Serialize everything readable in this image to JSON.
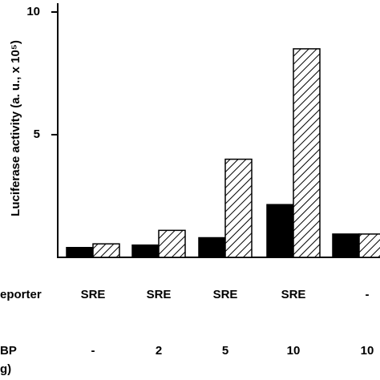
{
  "chart_data": {
    "type": "bar",
    "y_label": "Luciferase activity (a. u., x 10⁵)",
    "categories": [
      null,
      null,
      null,
      null,
      null
    ],
    "series": [
      {
        "color": "#000000",
        "pattern": "solid",
        "values": [
          0.4,
          0.5,
          0.8,
          2.15,
          0.95
        ]
      },
      {
        "color": "#000000",
        "pattern": "hatch",
        "values": [
          0.55,
          1.1,
          4.0,
          8.5,
          0.95
        ]
      }
    ],
    "ylim": [
      0,
      10
    ],
    "yticks": [
      5,
      10
    ],
    "grid": false
  },
  "table": {
    "rows": [
      {
        "label": "eporter",
        "values": [
          "SRE",
          "SRE",
          "SRE",
          "SRE",
          "-"
        ]
      },
      {
        "label": "BP",
        "values": [
          "-",
          "2",
          "5",
          "10",
          "10"
        ]
      }
    ],
    "unit": "g)"
  }
}
